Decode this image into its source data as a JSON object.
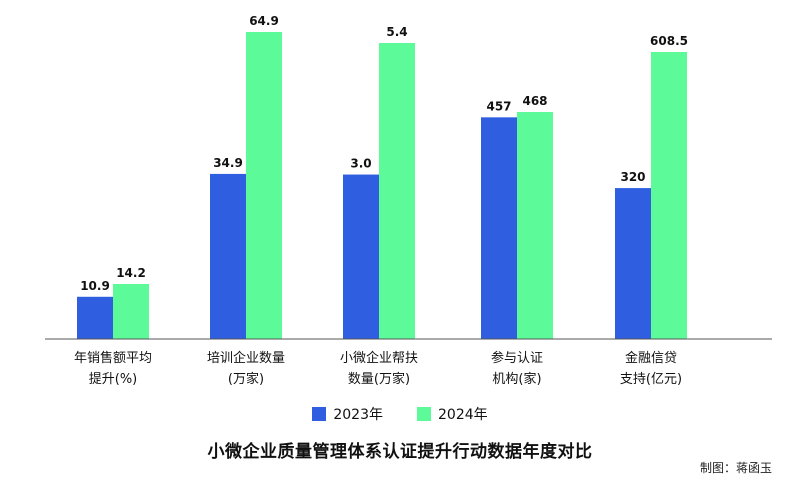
{
  "chart_data": {
    "type": "bar",
    "title": "小微企业质量管理体系认证提升行动数据年度对比",
    "credit": "制图：蒋函玉",
    "grid": false,
    "legend_position": "bottom",
    "categories": [
      [
        "年销售额平均",
        "提升(%)"
      ],
      [
        "培训企业数量",
        "(万家)"
      ],
      [
        "小微企业帮扶",
        "数量(万家)"
      ],
      [
        "参与认证",
        "机构(家)"
      ],
      [
        "金融信贷",
        "支持(亿元)"
      ]
    ],
    "series": [
      {
        "name": "2023年",
        "color": "#2f5fe0",
        "values": [
          10.9,
          34.9,
          3.0,
          457,
          320
        ],
        "labels": [
          "10.9",
          "34.9",
          "3.0",
          "457",
          "320"
        ]
      },
      {
        "name": "2024年",
        "color": "#5dfa9a",
        "values": [
          14.2,
          64.9,
          5.4,
          468,
          608.5
        ],
        "labels": [
          "14.2",
          "64.9",
          "5.4",
          "468",
          "608.5"
        ]
      }
    ],
    "note": "each category is drawn on its own scale; bar lengths are not comparable across categories"
  }
}
